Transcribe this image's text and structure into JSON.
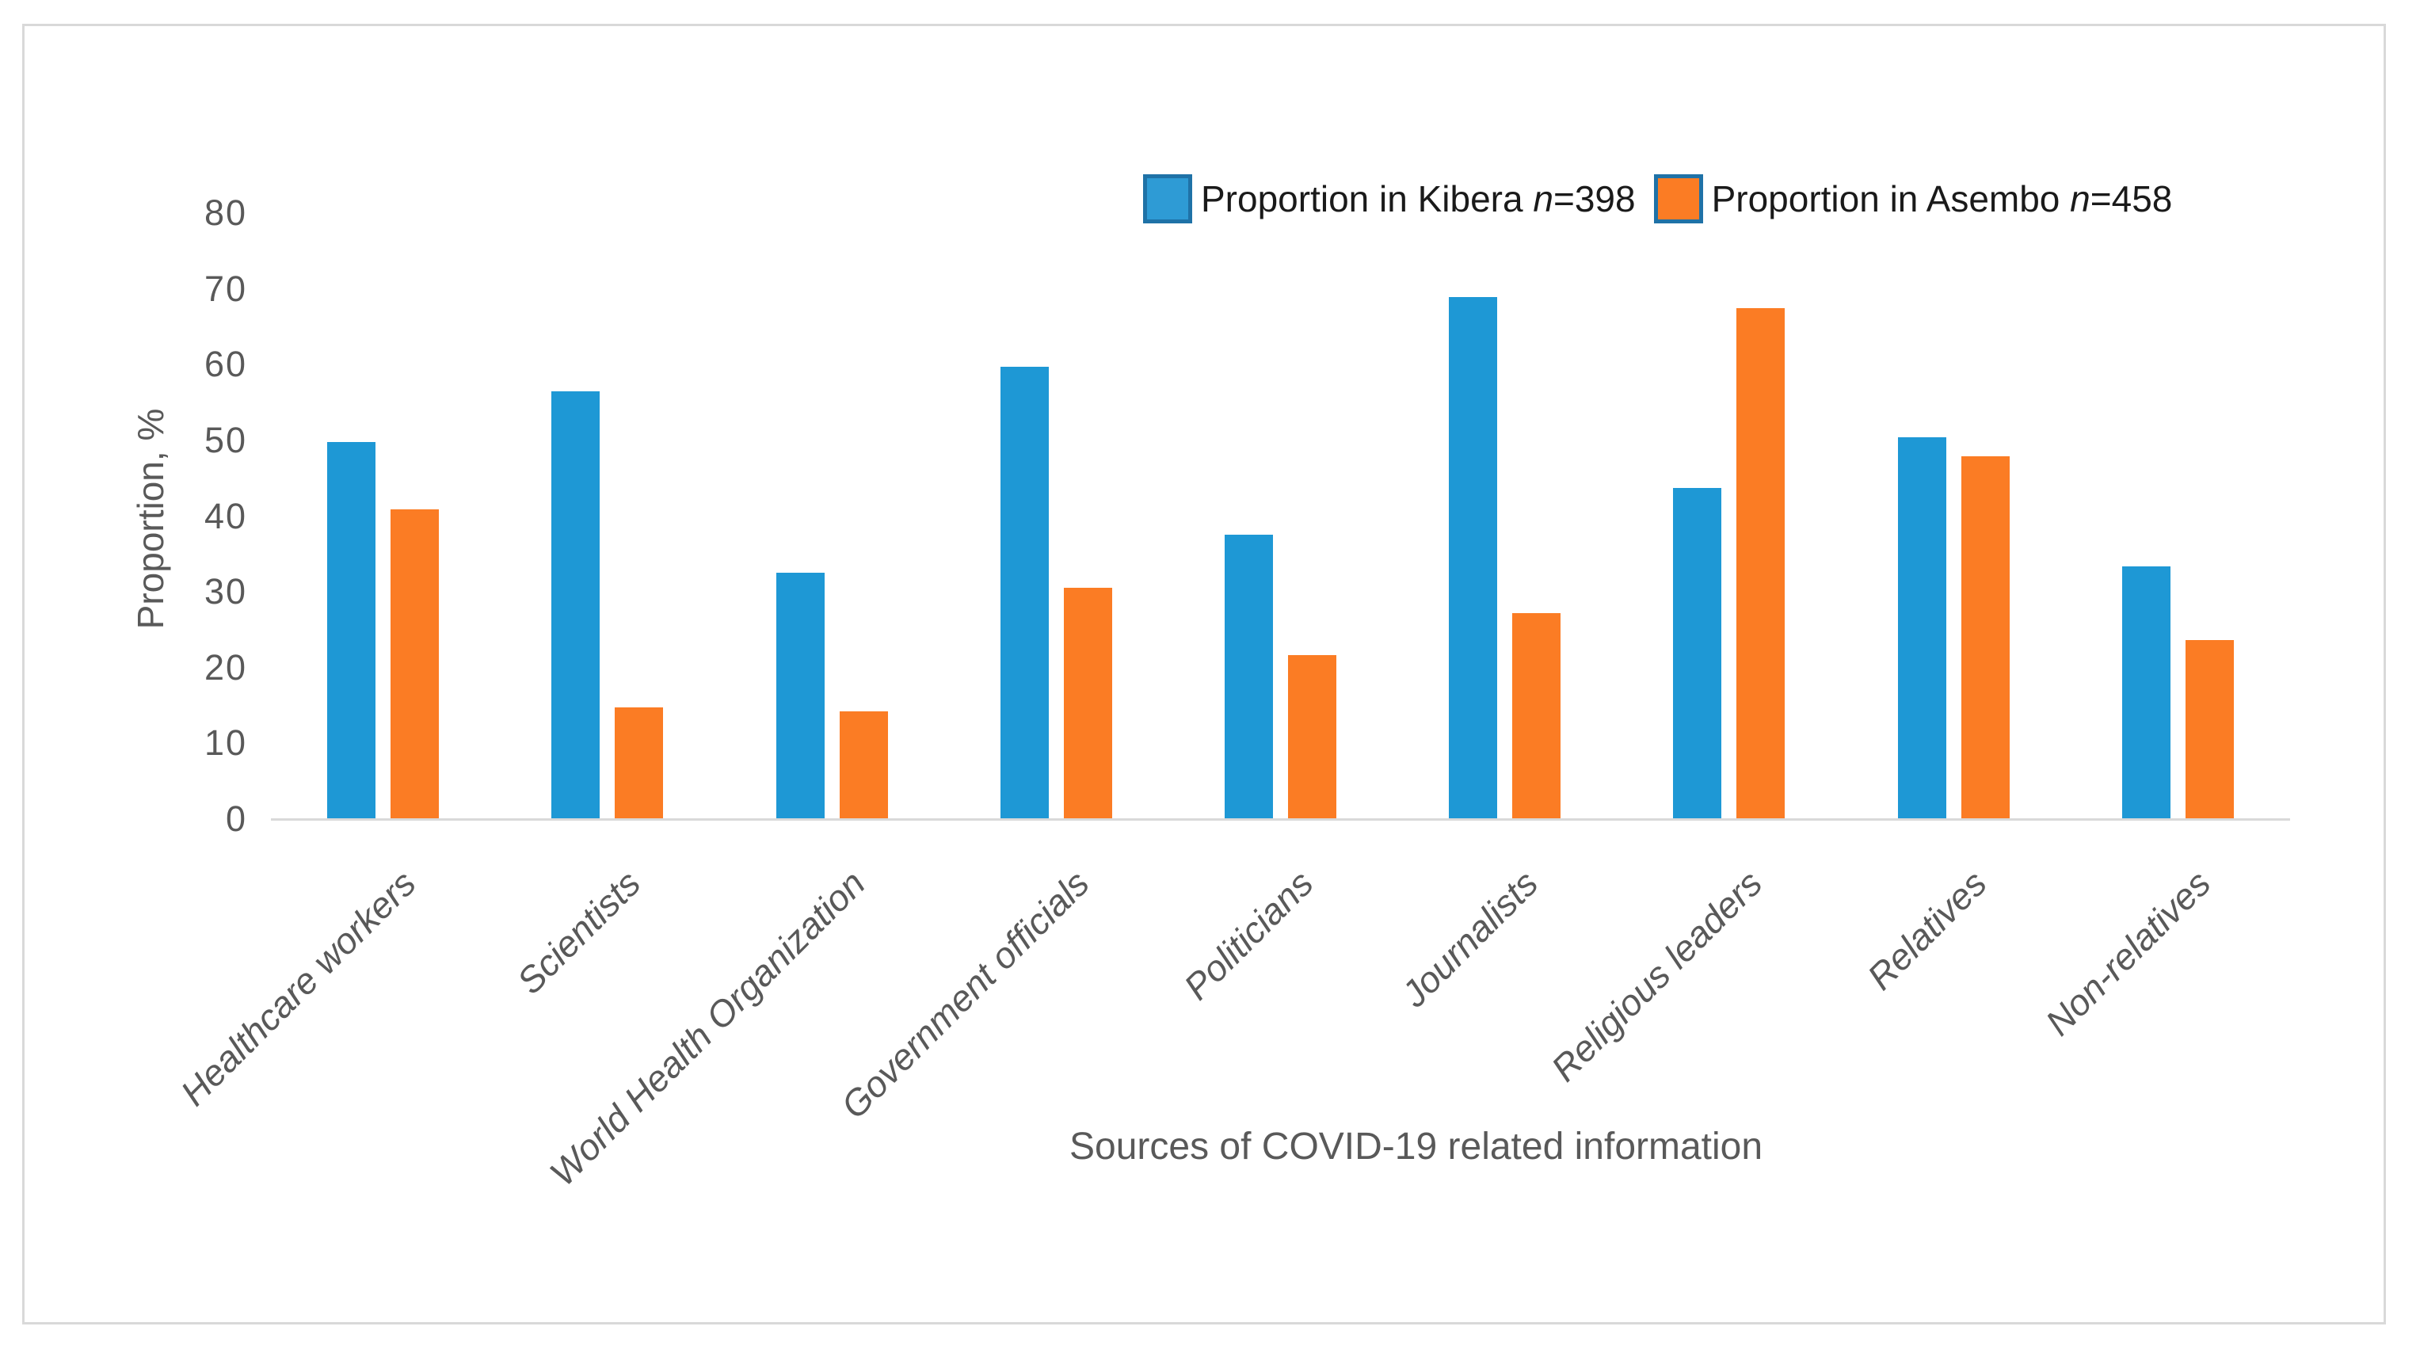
{
  "chart_data": {
    "type": "bar",
    "title": "",
    "xlabel": "Sources of COVID-19 related information",
    "ylabel": "Proportion, %",
    "ylim": [
      0,
      80
    ],
    "yticks": [
      0,
      10,
      20,
      30,
      40,
      50,
      60,
      70,
      80
    ],
    "grid": false,
    "legend_position": "top-right",
    "categories": [
      "Healthcare workers",
      "Scientists",
      "World Health Organization",
      "Government officials",
      "Politicians",
      "Journalists",
      "Religious leaders",
      "Relatives",
      "Non-relatives"
    ],
    "series": [
      {
        "name": "Proportion in Kibera n=398",
        "label_text": "Proportion in Kibera",
        "n_symbol": "n",
        "n_value": "=398",
        "color": "#1e98d5",
        "swatch_fill": "#2e9bd5",
        "swatch_border": "#1f72a7",
        "values": [
          49.7,
          56.4,
          32.4,
          59.6,
          37.4,
          68.8,
          43.6,
          50.3,
          33.3
        ]
      },
      {
        "name": "Proportion in Asembo n=458",
        "label_text": "Proportion in Asembo",
        "n_symbol": "n",
        "n_value": "=458",
        "color": "#fb7c24",
        "swatch_fill": "#fb7c24",
        "swatch_border": "#1f72a7",
        "values": [
          40.8,
          14.6,
          14.1,
          30.4,
          21.5,
          27.1,
          67.4,
          47.8,
          23.5
        ]
      }
    ],
    "colors": {
      "axis_line": "#d9d9d9",
      "figure_border": "#d9d9d9",
      "tick_text": "#595959",
      "axis_title_text": "#595959",
      "legend_text": "#1a1a1a",
      "background": "#ffffff"
    }
  }
}
